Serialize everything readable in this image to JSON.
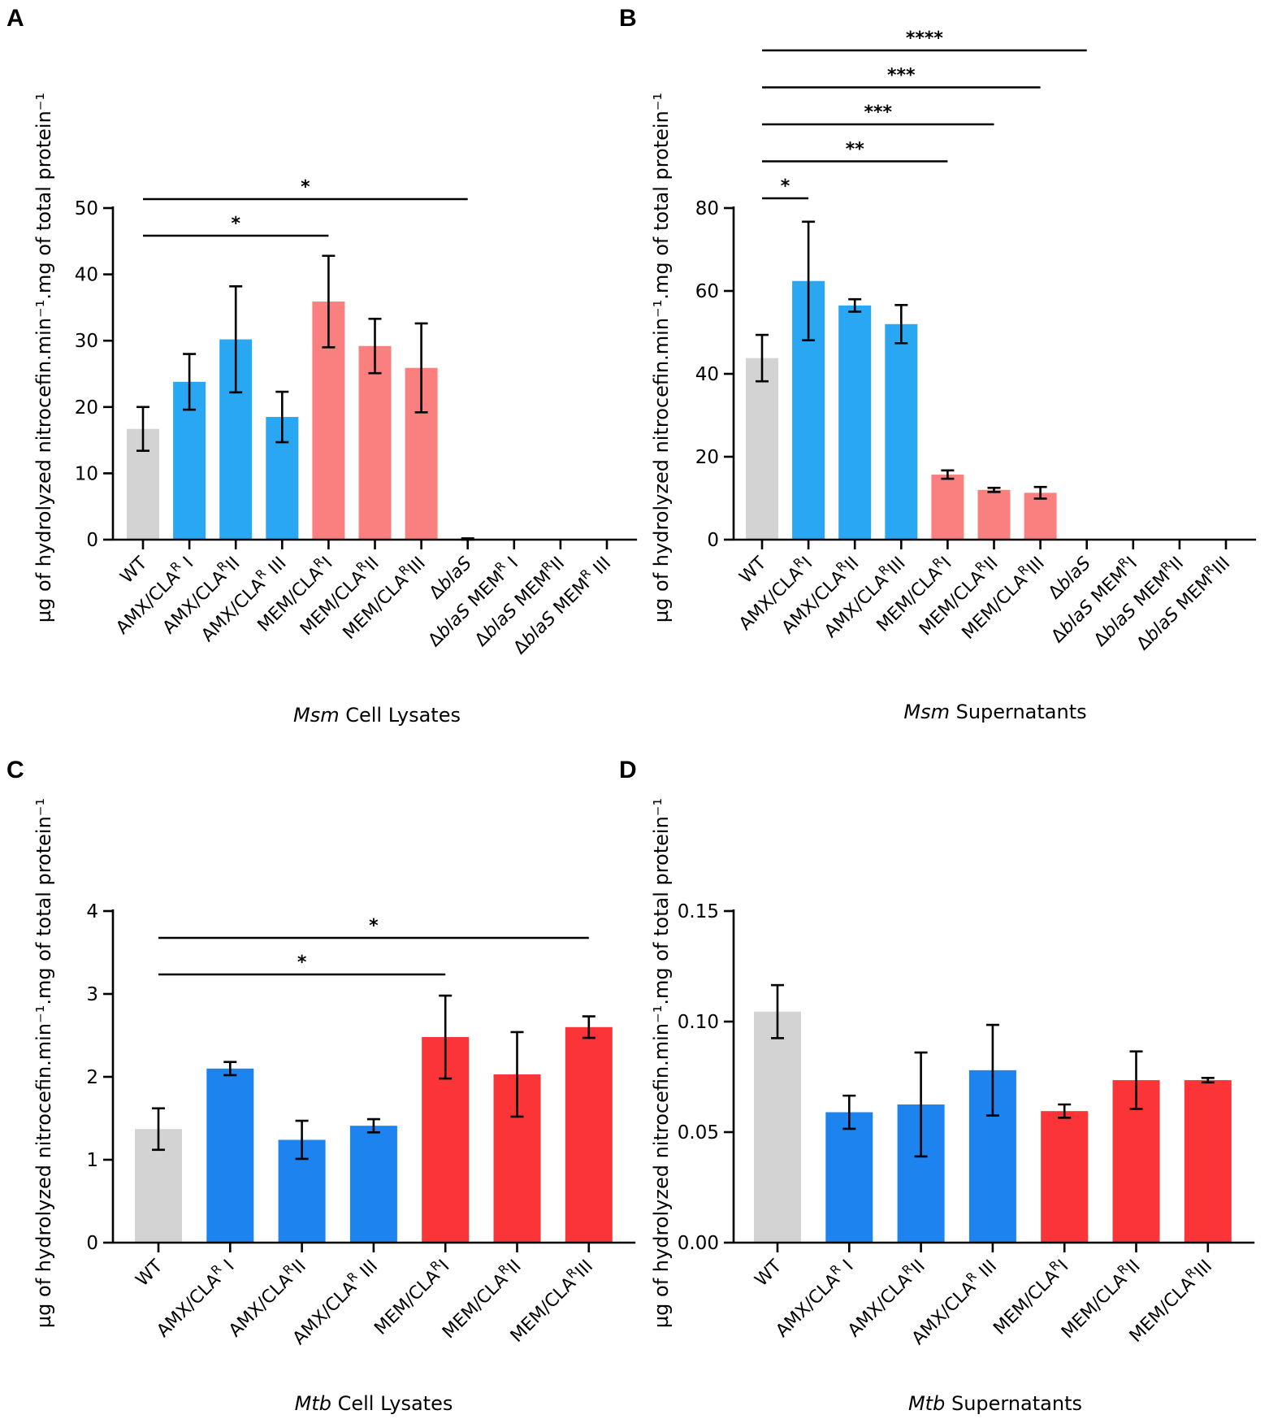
{
  "chart_data": [
    {
      "panel": "A",
      "type": "bar",
      "ylabel": "µg of hydrolyzed nitrocefin.min⁻¹.mg of total protein⁻¹",
      "xtitle_italic": "Msm",
      "xtitle_rest": " Cell Lysates",
      "ylim": [
        0,
        50
      ],
      "yticks": [
        0,
        10,
        20,
        30,
        40,
        50
      ],
      "yticklabels": [
        "0",
        "10",
        "20",
        "30",
        "40",
        "50"
      ],
      "categories": [
        [
          {
            "t": "WT"
          }
        ],
        [
          {
            "t": "AMX/CLA"
          },
          {
            "t": "R",
            "sup": true
          },
          {
            "t": " I"
          }
        ],
        [
          {
            "t": "AMX/CLA"
          },
          {
            "t": "R",
            "sup": true
          },
          {
            "t": "II"
          }
        ],
        [
          {
            "t": "AMX/CLA"
          },
          {
            "t": "R",
            "sup": true
          },
          {
            "t": " III"
          }
        ],
        [
          {
            "t": "MEM/CLA"
          },
          {
            "t": "R",
            "sup": true
          },
          {
            "t": "I"
          }
        ],
        [
          {
            "t": "MEM/CLA"
          },
          {
            "t": "R",
            "sup": true
          },
          {
            "t": "II"
          }
        ],
        [
          {
            "t": "MEM/CLA"
          },
          {
            "t": "R",
            "sup": true
          },
          {
            "t": "III"
          }
        ],
        [
          {
            "t": "Δ"
          },
          {
            "t": "blaS",
            "it": true
          }
        ],
        [
          {
            "t": "Δ"
          },
          {
            "t": "blaS",
            "it": true
          },
          {
            "t": " MEM"
          },
          {
            "t": "R",
            "sup": true
          },
          {
            "t": " I"
          }
        ],
        [
          {
            "t": "Δ"
          },
          {
            "t": "blaS",
            "it": true
          },
          {
            "t": " MEM"
          },
          {
            "t": "R",
            "sup": true
          },
          {
            "t": "II"
          }
        ],
        [
          {
            "t": "Δ"
          },
          {
            "t": "blaS",
            "it": true
          },
          {
            "t": " MEM"
          },
          {
            "t": "R",
            "sup": true
          },
          {
            "t": " III"
          }
        ]
      ],
      "values": [
        16.7,
        23.8,
        30.2,
        18.5,
        35.9,
        29.2,
        25.9,
        0.1,
        0,
        0,
        0
      ],
      "errors": [
        3.3,
        4.2,
        8.0,
        3.8,
        6.9,
        4.1,
        6.7,
        0.1,
        0,
        0,
        0
      ],
      "colors": [
        "#d3d3d3",
        "#29a7f2",
        "#29a7f2",
        "#29a7f2",
        "#fa8080",
        "#fa8080",
        "#fa8080",
        "#ffffff",
        "#ffffff",
        "#ffffff",
        "#ffffff"
      ],
      "significance": [
        {
          "from": 0,
          "to": 4,
          "label": "*",
          "level": 1
        },
        {
          "from": 0,
          "to": 7,
          "label": "*",
          "level": 2
        }
      ]
    },
    {
      "panel": "B",
      "type": "bar",
      "ylabel": "µg of hydrolyzed nitrocefin.min⁻¹.mg of total protein⁻¹",
      "xtitle_italic": "Msm",
      "xtitle_rest": " Supernatants",
      "ylim": [
        0,
        80
      ],
      "yticks": [
        0,
        20,
        40,
        60,
        80
      ],
      "yticklabels": [
        "0",
        "20",
        "40",
        "60",
        "80"
      ],
      "categories": [
        [
          {
            "t": "WT"
          }
        ],
        [
          {
            "t": "AMX/CLA"
          },
          {
            "t": "R",
            "sup": true
          },
          {
            "t": "I"
          }
        ],
        [
          {
            "t": "AMX/CLA"
          },
          {
            "t": "R",
            "sup": true
          },
          {
            "t": "II"
          }
        ],
        [
          {
            "t": "AMX/CLA"
          },
          {
            "t": "R",
            "sup": true
          },
          {
            "t": "III"
          }
        ],
        [
          {
            "t": "MEM/CLA"
          },
          {
            "t": "R",
            "sup": true
          },
          {
            "t": "I"
          }
        ],
        [
          {
            "t": "MEM/CLA"
          },
          {
            "t": "R",
            "sup": true
          },
          {
            "t": "II"
          }
        ],
        [
          {
            "t": "MEM/CLA"
          },
          {
            "t": "R",
            "sup": true
          },
          {
            "t": "III"
          }
        ],
        [
          {
            "t": "Δ"
          },
          {
            "t": "blaS",
            "it": true
          }
        ],
        [
          {
            "t": "Δ"
          },
          {
            "t": "blaS",
            "it": true
          },
          {
            "t": " MEM"
          },
          {
            "t": "R",
            "sup": true
          },
          {
            "t": "I"
          }
        ],
        [
          {
            "t": "Δ"
          },
          {
            "t": "blaS",
            "it": true
          },
          {
            "t": " MEM"
          },
          {
            "t": "R",
            "sup": true
          },
          {
            "t": "II"
          }
        ],
        [
          {
            "t": "Δ"
          },
          {
            "t": "blaS",
            "it": true
          },
          {
            "t": " MEM"
          },
          {
            "t": "R",
            "sup": true
          },
          {
            "t": "III"
          }
        ]
      ],
      "values": [
        43.8,
        62.4,
        56.5,
        52.0,
        15.7,
        12.0,
        11.3,
        0,
        0,
        0,
        0
      ],
      "errors": [
        5.6,
        14.3,
        1.5,
        4.6,
        1.0,
        0.5,
        1.4,
        0,
        0,
        0,
        0
      ],
      "colors": [
        "#d3d3d3",
        "#29a7f2",
        "#29a7f2",
        "#29a7f2",
        "#fa8080",
        "#fa8080",
        "#fa8080",
        "#ffffff",
        "#ffffff",
        "#ffffff",
        "#ffffff"
      ],
      "significance": [
        {
          "from": 0,
          "to": 1,
          "label": "*",
          "level": 1
        },
        {
          "from": 0,
          "to": 4,
          "label": "**",
          "level": 2
        },
        {
          "from": 0,
          "to": 5,
          "label": "***",
          "level": 3
        },
        {
          "from": 0,
          "to": 6,
          "label": "***",
          "level": 4
        },
        {
          "from": 0,
          "to": 7,
          "label": "****",
          "level": 5
        }
      ]
    },
    {
      "panel": "C",
      "type": "bar",
      "ylabel": "µg of hydrolyzed nitrocefin.min⁻¹.mg of total protein⁻¹",
      "xtitle_italic": "Mtb",
      "xtitle_rest": " Cell Lysates",
      "ylim": [
        0,
        4
      ],
      "yticks": [
        0,
        1,
        2,
        3,
        4
      ],
      "yticklabels": [
        "0",
        "1",
        "2",
        "3",
        "4"
      ],
      "categories": [
        [
          {
            "t": "WT"
          }
        ],
        [
          {
            "t": "AMX/CLA"
          },
          {
            "t": "R",
            "sup": true
          },
          {
            "t": " I"
          }
        ],
        [
          {
            "t": "AMX/CLA"
          },
          {
            "t": "R",
            "sup": true
          },
          {
            "t": "II"
          }
        ],
        [
          {
            "t": "AMX/CLA"
          },
          {
            "t": "R",
            "sup": true
          },
          {
            "t": " III"
          }
        ],
        [
          {
            "t": "MEM/CLA"
          },
          {
            "t": "R",
            "sup": true
          },
          {
            "t": "I"
          }
        ],
        [
          {
            "t": "MEM/CLA"
          },
          {
            "t": "R",
            "sup": true
          },
          {
            "t": "II"
          }
        ],
        [
          {
            "t": "MEM/CLA"
          },
          {
            "t": "R",
            "sup": true
          },
          {
            "t": "III"
          }
        ]
      ],
      "values": [
        1.37,
        2.1,
        1.24,
        1.41,
        2.48,
        2.03,
        2.6
      ],
      "errors": [
        0.25,
        0.08,
        0.23,
        0.08,
        0.5,
        0.51,
        0.13
      ],
      "colors": [
        "#d3d3d3",
        "#1c83ef",
        "#1c83ef",
        "#1c83ef",
        "#fb3437",
        "#fb3437",
        "#fb3437"
      ],
      "significance": [
        {
          "from": 0,
          "to": 4,
          "label": "*",
          "level": 1
        },
        {
          "from": 0,
          "to": 6,
          "label": "*",
          "level": 2
        }
      ]
    },
    {
      "panel": "D",
      "type": "bar",
      "ylabel": "µg of hydrolyzed nitrocefin.min⁻¹.mg of total protein⁻¹",
      "xtitle_italic": "Mtb",
      "xtitle_rest": " Supernatants",
      "ylim": [
        0,
        0.15
      ],
      "yticks": [
        0,
        0.05,
        0.1,
        0.15
      ],
      "yticklabels": [
        "0.00",
        "0.05",
        "0.10",
        "0.15"
      ],
      "categories": [
        [
          {
            "t": "WT"
          }
        ],
        [
          {
            "t": "AMX/CLA"
          },
          {
            "t": "R",
            "sup": true
          },
          {
            "t": " I"
          }
        ],
        [
          {
            "t": "AMX/CLA"
          },
          {
            "t": "R",
            "sup": true
          },
          {
            "t": "II"
          }
        ],
        [
          {
            "t": "AMX/CLA"
          },
          {
            "t": "R",
            "sup": true
          },
          {
            "t": " III"
          }
        ],
        [
          {
            "t": "MEM/CLA"
          },
          {
            "t": "R",
            "sup": true
          },
          {
            "t": "I"
          }
        ],
        [
          {
            "t": "MEM/CLA"
          },
          {
            "t": "R",
            "sup": true
          },
          {
            "t": "II"
          }
        ],
        [
          {
            "t": "MEM/CLA"
          },
          {
            "t": "R",
            "sup": true
          },
          {
            "t": "III"
          }
        ]
      ],
      "values": [
        0.1045,
        0.059,
        0.0625,
        0.078,
        0.0595,
        0.0735,
        0.0735
      ],
      "errors": [
        0.012,
        0.0075,
        0.0235,
        0.0205,
        0.003,
        0.013,
        0.001
      ],
      "colors": [
        "#d3d3d3",
        "#1c83ef",
        "#1c83ef",
        "#1c83ef",
        "#fb3437",
        "#fb3437",
        "#fb3437"
      ],
      "significance": []
    }
  ]
}
